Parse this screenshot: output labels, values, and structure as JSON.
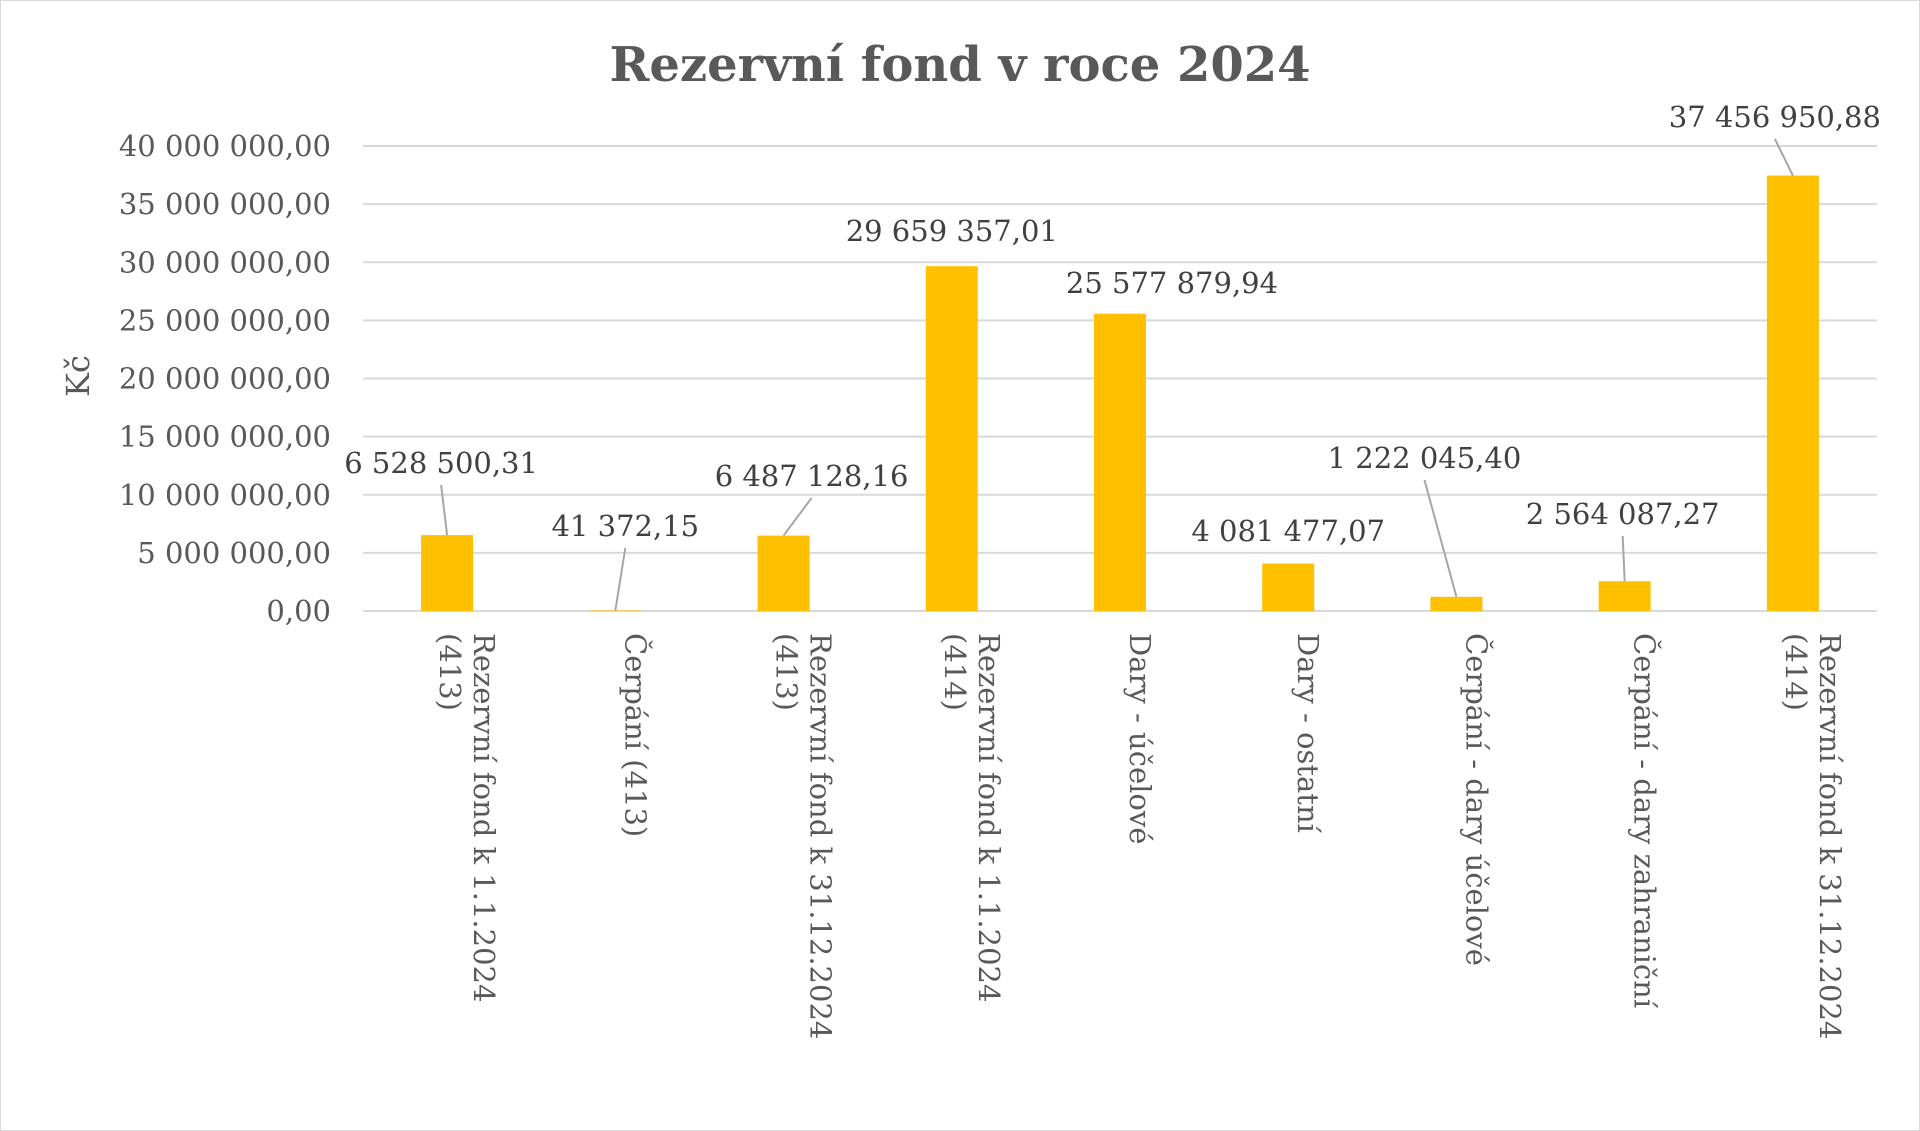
{
  "chart_data": {
    "type": "bar",
    "title": "Rezervní fond v roce 2024",
    "xlabel": "",
    "ylabel": "Kč",
    "ylim": [
      0,
      40000000
    ],
    "yticks": [
      0,
      5000000,
      10000000,
      15000000,
      20000000,
      25000000,
      30000000,
      35000000,
      40000000
    ],
    "ytick_labels": [
      "0,00",
      "5 000 000,00",
      "10 000 000,00",
      "15 000 000,00",
      "20 000 000,00",
      "25 000 000,00",
      "30 000 000,00",
      "35 000 000,00",
      "40 000 000,00"
    ],
    "grid": true,
    "legend": "none",
    "bar_color": "#ffc000",
    "categories": [
      [
        "Rezervní fond k 1.1.2024",
        "(413)"
      ],
      [
        "Čerpání (413)"
      ],
      [
        "Rezervní fond k 31.12.2024",
        "(413)"
      ],
      [
        "Rezervní fond k 1.1.2024",
        "(414)"
      ],
      [
        "Dary - účelové"
      ],
      [
        "Dary - ostatní"
      ],
      [
        "Čerpání - dary účelové"
      ],
      [
        "Čerpání - dary zahraniční"
      ],
      [
        "Rezervní fond k 31.12.2024",
        "(414)"
      ]
    ],
    "values": [
      6528500.31,
      41372.15,
      6487128.16,
      29659357.01,
      25577879.94,
      4081477.07,
      1222045.4,
      2564087.27,
      37456950.88
    ],
    "data_labels": [
      "6 528 500,31",
      "41 372,15",
      "6 487 128,16",
      "29 659 357,01",
      "25 577 879,94",
      "4 081 477,07",
      "1 222 045,40",
      "2 564 087,27",
      "37 456 950,88"
    ]
  }
}
